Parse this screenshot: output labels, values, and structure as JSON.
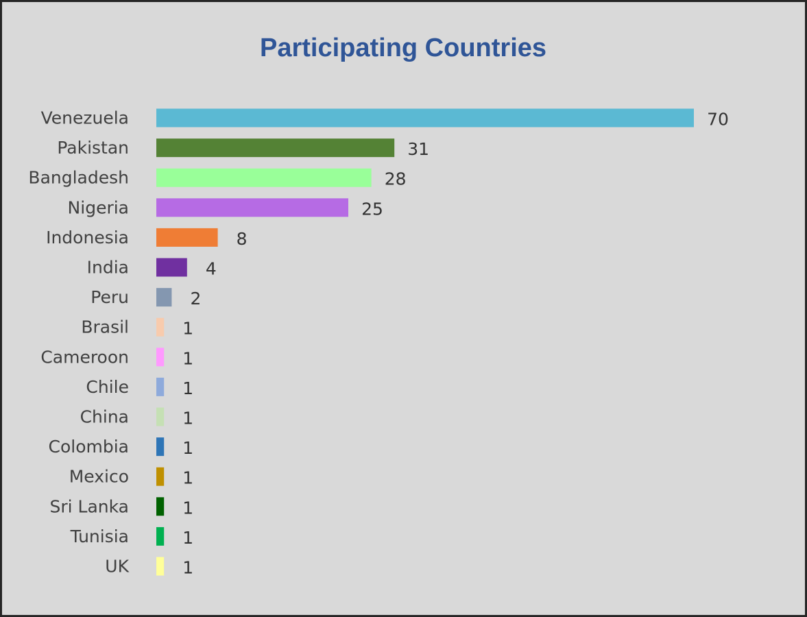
{
  "chart_data": {
    "type": "bar",
    "orientation": "horizontal",
    "title": "Participating Countries",
    "xlabel": "",
    "ylabel": "",
    "grid": false,
    "legend": "none",
    "xlim": [
      0,
      70
    ],
    "categories": [
      "Venezuela",
      "Pakistan",
      "Bangladesh",
      "Nigeria",
      "Indonesia",
      "India",
      "Peru",
      "Brasil",
      "Cameroon",
      "Chile",
      "China",
      "Colombia",
      "Mexico",
      "Sri Lanka",
      "Tunisia",
      "UK"
    ],
    "values": [
      70,
      31,
      28,
      25,
      8,
      4,
      2,
      1,
      1,
      1,
      1,
      1,
      1,
      1,
      1,
      1
    ],
    "colors": [
      "#5bb9d3",
      "#548235",
      "#99ff99",
      "#b66be4",
      "#ef7d35",
      "#7030a0",
      "#8497b0",
      "#f8cbad",
      "#ff99ff",
      "#8eaadb",
      "#c5e0b4",
      "#2e75b6",
      "#bf9000",
      "#006100",
      "#00b050",
      "#ffff99"
    ]
  }
}
